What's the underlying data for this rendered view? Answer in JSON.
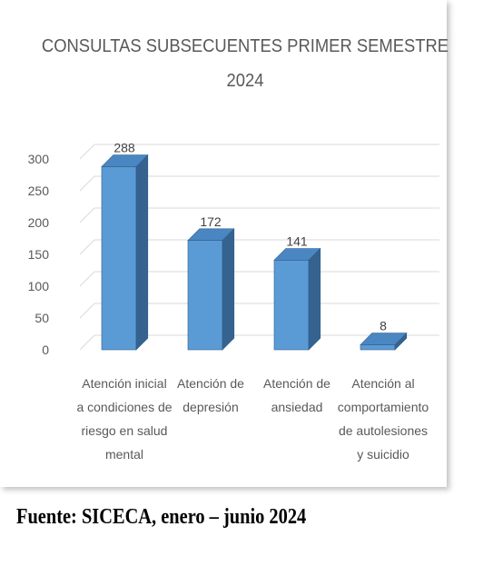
{
  "chart_data": {
    "type": "bar",
    "title_line1": "CONSULTAS SUBSECUENTES PRIMER SEMESTRE",
    "title_line2": "2024",
    "categories": [
      [
        "Atención inicial",
        "a condiciones de",
        "riesgo en salud",
        "mental"
      ],
      [
        "Atención de",
        "depresión"
      ],
      [
        "Atención de",
        "ansiedad"
      ],
      [
        "Atención al",
        "comportamiento",
        "de autolesiones",
        "y suicidio"
      ]
    ],
    "values": [
      288,
      172,
      141,
      8
    ],
    "data_labels": [
      "288",
      "172",
      "141",
      "8"
    ],
    "yticks": [
      "0",
      "50",
      "100",
      "150",
      "200",
      "250",
      "300"
    ],
    "ylim": [
      0,
      300
    ],
    "grid": true,
    "style": "3d-column",
    "bar_color": "#5b9bd5"
  },
  "source_note": "Fuente: SICECA, enero – junio 2024"
}
